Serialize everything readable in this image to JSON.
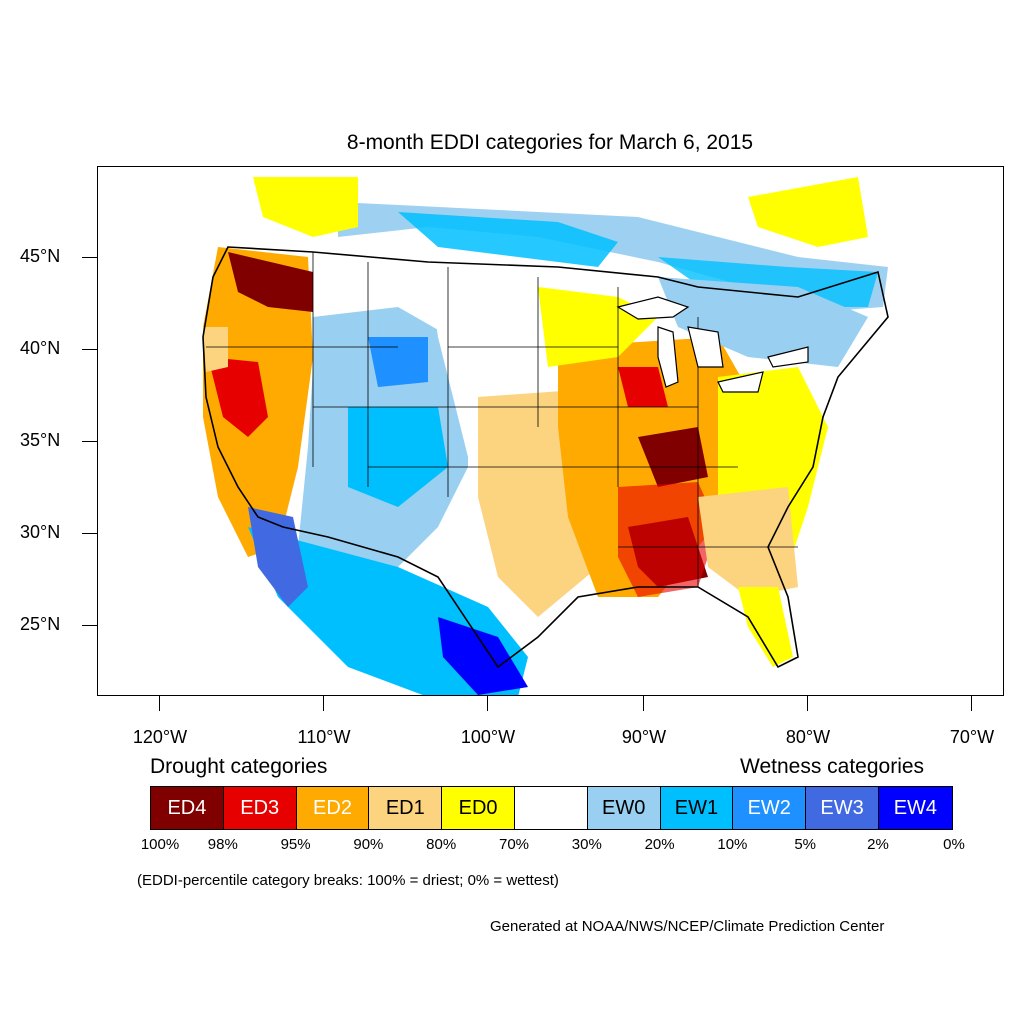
{
  "title": "8-month EDDI categories for March 6, 2015",
  "map": {
    "lat_labels": [
      "45°N",
      "40°N",
      "35°N",
      "30°N",
      "25°N"
    ],
    "lon_labels": [
      "120°W",
      "110°W",
      "100°W",
      "90°W",
      "80°W",
      "70°W"
    ],
    "colors": {
      "ED4": "#800000",
      "ED3": "#e60000",
      "ED2": "#ffaa00",
      "ED1": "#fcd37f",
      "ED0": "#ffff00",
      "NONE": "#ffffff",
      "EW0": "#99cff0",
      "EW1": "#00bfff",
      "EW2": "#1e90ff",
      "EW3": "#4169e1",
      "EW4": "#0000ff"
    }
  },
  "legend": {
    "drought_heading": "Drought categories",
    "wetness_heading": "Wetness categories",
    "categories": [
      {
        "label": "ED4",
        "color": "#800000",
        "text_color": "#ffffff"
      },
      {
        "label": "ED3",
        "color": "#e60000",
        "text_color": "#ffffff"
      },
      {
        "label": "ED2",
        "color": "#ffaa00",
        "text_color": "#ffffff"
      },
      {
        "label": "ED1",
        "color": "#fcd37f",
        "text_color": "#000000"
      },
      {
        "label": "ED0",
        "color": "#ffff00",
        "text_color": "#000000"
      },
      {
        "label": "",
        "color": "#ffffff",
        "text_color": "#000000"
      },
      {
        "label": "EW0",
        "color": "#99cff0",
        "text_color": "#000000"
      },
      {
        "label": "EW1",
        "color": "#00bfff",
        "text_color": "#000000"
      },
      {
        "label": "EW2",
        "color": "#1e90ff",
        "text_color": "#ffffff"
      },
      {
        "label": "EW3",
        "color": "#4169e1",
        "text_color": "#ffffff"
      },
      {
        "label": "EW4",
        "color": "#0000ff",
        "text_color": "#ffffff"
      }
    ],
    "percent_breaks": [
      "100%",
      "98%",
      "95%",
      "90%",
      "80%",
      "70%",
      "30%",
      "20%",
      "10%",
      "5%",
      "2%",
      "0%"
    ]
  },
  "note": "(EDDI-percentile category breaks: 100% = driest; 0% = wettest)",
  "credit": "Generated at NOAA/NWS/NCEP/Climate Prediction Center"
}
